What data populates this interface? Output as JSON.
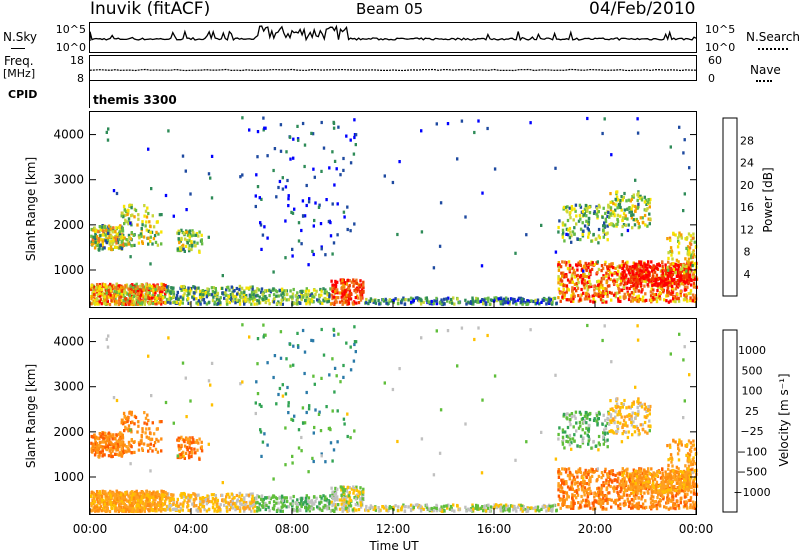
{
  "header": {
    "station": "Inuvik (fitACF)",
    "beam": "Beam 05",
    "date": "04/Feb/2010"
  },
  "side_labels": {
    "nsky": "N.Sky",
    "nsearch": "N.Search",
    "freq": "Freq.",
    "freq_unit": "[MHz]",
    "cpid": "CPID",
    "nave": "Nave",
    "cpid_value": "themis 3300"
  },
  "colors": {
    "power": [
      "#0000ff",
      "#1e4aa0",
      "#2e8b57",
      "#66bb44",
      "#c8d63a",
      "#f7e400",
      "#f5a000",
      "#f07820",
      "#f04000",
      "#ff0000"
    ],
    "velocity": [
      "#ff0000",
      "#ff5a00",
      "#ff8c10",
      "#ffa020",
      "#ffc000",
      "#c0c0c0",
      "#5fbe3a",
      "#31a354",
      "#2a7aa8",
      "#1f3fa0"
    ]
  },
  "chart_data": [
    {
      "type": "line",
      "title": "",
      "series": [
        {
          "name": "N.Sky",
          "scale": "log",
          "ylim_label": [
            "10^0",
            "10^5"
          ]
        },
        {
          "name": "N.Search",
          "scale": "log",
          "ylim_label": [
            "10^0",
            "10^5"
          ]
        }
      ],
      "y_ticks_left": [
        "10^5",
        "10^0"
      ],
      "y_ticks_right": [
        "10^5",
        "10^0"
      ]
    },
    {
      "type": "line",
      "series": [
        {
          "name": "Freq. [MHz]",
          "ylim": [
            8,
            18
          ],
          "approx_value": 11
        },
        {
          "name": "Nave",
          "ylim": [
            0,
            60
          ]
        }
      ],
      "y_ticks_left": [
        "18",
        "8"
      ],
      "y_ticks_right": [
        "60",
        "0"
      ]
    },
    {
      "type": "heatmap",
      "quantity": "Power",
      "colorbar_label": "Power [dB]",
      "colorbar_ticks": [
        "28",
        "24",
        "20",
        "16",
        "12",
        "8",
        "4"
      ],
      "ylabel": "Slant Range [km]",
      "y_ticks": [
        "4000",
        "3000",
        "2000",
        "1000"
      ],
      "ylim": [
        180,
        4500
      ],
      "xlim": [
        "00:00",
        "24:00"
      ],
      "regions": [
        {
          "t0": 0.0,
          "t1": 3.0,
          "r0": 200,
          "r1": 700,
          "level": "high"
        },
        {
          "t0": 0.0,
          "t1": 1.2,
          "r0": 1450,
          "r1": 2000,
          "level": "mid"
        },
        {
          "t0": 3.5,
          "t1": 4.5,
          "r0": 1400,
          "r1": 1800,
          "level": "mid"
        },
        {
          "t0": 9.5,
          "t1": 10.8,
          "r0": 200,
          "r1": 800,
          "level": "high"
        },
        {
          "t0": 18.5,
          "t1": 24.0,
          "r0": 200,
          "r1": 1200,
          "level": "high"
        },
        {
          "t0": 19.0,
          "t1": 22.0,
          "r0": 1900,
          "r1": 2600,
          "level": "mid"
        }
      ]
    },
    {
      "type": "heatmap",
      "quantity": "Velocity",
      "colorbar_label": "Velocity [m s⁻¹]",
      "colorbar_ticks": [
        "1000",
        "500",
        "100",
        "25",
        "−25",
        "−100",
        "−500",
        "−1000"
      ],
      "ylabel": "Slant Range [km]",
      "y_ticks": [
        "4000",
        "3000",
        "2000",
        "1000"
      ],
      "ylim": [
        180,
        4500
      ],
      "xlim": [
        "00:00",
        "24:00"
      ],
      "xlabel": "Time UT",
      "x_ticks": [
        "00:00",
        "04:00",
        "08:00",
        "12:00",
        "16:00",
        "20:00",
        "00:00"
      ]
    }
  ]
}
